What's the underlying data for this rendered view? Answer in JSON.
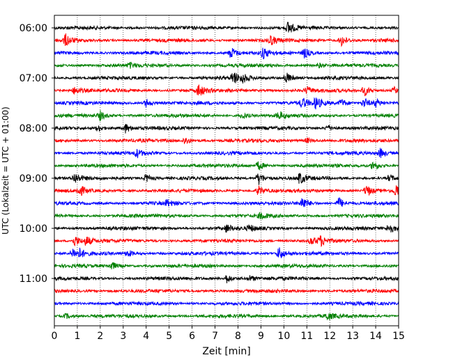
{
  "chart_data": {
    "type": "line",
    "title": "",
    "xlabel": "Zeit  [min]",
    "ylabel": "UTC (Lokalzeit = UTC + 01:00)",
    "xlim": [
      0,
      15
    ],
    "x_ticks": [
      "0",
      "1",
      "2",
      "3",
      "4",
      "5",
      "6",
      "7",
      "8",
      "9",
      "10",
      "11",
      "12",
      "13",
      "14",
      "15"
    ],
    "y_ticks": [
      "06:00",
      "07:00",
      "08:00",
      "09:00",
      "10:00",
      "11:00"
    ],
    "grid": "vertical dotted",
    "legend": "none",
    "trace_minutes": 15,
    "trace_start": "06:00",
    "trace_end": "11:45",
    "trace_count": 24,
    "trace_colors": [
      "#000000",
      "#ff0000",
      "#0000ff",
      "#008000"
    ],
    "series": [
      {
        "start": "06:00",
        "color": "#000000",
        "events": [
          [
            10.2,
            1.0
          ]
        ]
      },
      {
        "start": "06:15",
        "color": "#ff0000",
        "events": [
          [
            0.5,
            0.9
          ],
          [
            9.4,
            0.8
          ],
          [
            12.5,
            0.9
          ]
        ]
      },
      {
        "start": "06:30",
        "color": "#0000ff",
        "events": [
          [
            7.7,
            0.9
          ],
          [
            9.1,
            0.8
          ],
          [
            10.9,
            0.8
          ]
        ]
      },
      {
        "start": "06:45",
        "color": "#008000",
        "events": [
          [
            3.3,
            0.35
          ],
          [
            11.5,
            0.35
          ]
        ]
      },
      {
        "start": "07:00",
        "color": "#000000",
        "events": [
          [
            7.8,
            1.0
          ],
          [
            8.2,
            0.6
          ],
          [
            10.1,
            0.9
          ]
        ]
      },
      {
        "start": "07:15",
        "color": "#ff0000",
        "events": [
          [
            0.9,
            0.6
          ],
          [
            6.3,
            1.0
          ],
          [
            11.0,
            0.5
          ],
          [
            13.5,
            0.8
          ],
          [
            14.8,
            0.5
          ]
        ]
      },
      {
        "start": "07:30",
        "color": "#0000ff",
        "events": [
          [
            4.0,
            0.6
          ],
          [
            10.8,
            0.8
          ],
          [
            11.4,
            0.9
          ],
          [
            12.5,
            0.6
          ],
          [
            13.5,
            0.8
          ],
          [
            14.0,
            0.6
          ]
        ]
      },
      {
        "start": "07:45",
        "color": "#008000",
        "events": [
          [
            2.0,
            0.7
          ],
          [
            8.2,
            0.5
          ],
          [
            9.8,
            0.6
          ]
        ]
      },
      {
        "start": "08:00",
        "color": "#000000",
        "events": [
          [
            1.9,
            0.5
          ],
          [
            3.1,
            0.7
          ],
          [
            11.9,
            0.5
          ]
        ]
      },
      {
        "start": "08:15",
        "color": "#ff0000",
        "events": [
          [
            5.7,
            0.6
          ],
          [
            11.0,
            0.4
          ]
        ]
      },
      {
        "start": "08:30",
        "color": "#0000ff",
        "events": [
          [
            3.6,
            0.6
          ],
          [
            14.2,
            0.7
          ]
        ]
      },
      {
        "start": "08:45",
        "color": "#008000",
        "events": [
          [
            8.9,
            0.7
          ],
          [
            13.9,
            0.8
          ]
        ]
      },
      {
        "start": "09:00",
        "color": "#000000",
        "events": [
          [
            0.9,
            0.8
          ],
          [
            4.0,
            0.6
          ],
          [
            8.9,
            1.0
          ],
          [
            10.7,
            0.9
          ],
          [
            14.6,
            0.5
          ]
        ]
      },
      {
        "start": "09:15",
        "color": "#ff0000",
        "events": [
          [
            1.1,
            0.8
          ],
          [
            8.9,
            0.7
          ],
          [
            13.6,
            0.9
          ],
          [
            14.9,
            1.0
          ]
        ]
      },
      {
        "start": "09:30",
        "color": "#0000ff",
        "events": [
          [
            4.9,
            0.5
          ],
          [
            10.8,
            1.0
          ],
          [
            12.4,
            0.9
          ]
        ]
      },
      {
        "start": "09:45",
        "color": "#008000",
        "events": [
          [
            9.0,
            0.5
          ]
        ]
      },
      {
        "start": "10:00",
        "color": "#000000",
        "events": [
          [
            7.5,
            0.6
          ],
          [
            8.5,
            0.5
          ],
          [
            14.6,
            0.9
          ]
        ]
      },
      {
        "start": "10:15",
        "color": "#ff0000",
        "events": [
          [
            0.9,
            0.8
          ],
          [
            1.4,
            0.7
          ],
          [
            11.2,
            0.6
          ],
          [
            11.6,
            0.7
          ]
        ]
      },
      {
        "start": "10:30",
        "color": "#0000ff",
        "events": [
          [
            0.8,
            0.7
          ],
          [
            1.1,
            0.6
          ],
          [
            3.2,
            0.5
          ],
          [
            9.8,
            1.0
          ]
        ]
      },
      {
        "start": "10:45",
        "color": "#008000",
        "events": [
          [
            2.5,
            0.6
          ]
        ]
      },
      {
        "start": "11:00",
        "color": "#000000",
        "events": [
          [
            7.5,
            0.7
          ],
          [
            8.5,
            0.4
          ]
        ]
      },
      {
        "start": "11:15",
        "color": "#ff0000",
        "events": []
      },
      {
        "start": "11:30",
        "color": "#0000ff",
        "events": []
      },
      {
        "start": "11:45",
        "color": "#008000",
        "events": [
          [
            0.5,
            0.4
          ],
          [
            11.9,
            0.6
          ]
        ]
      }
    ]
  }
}
